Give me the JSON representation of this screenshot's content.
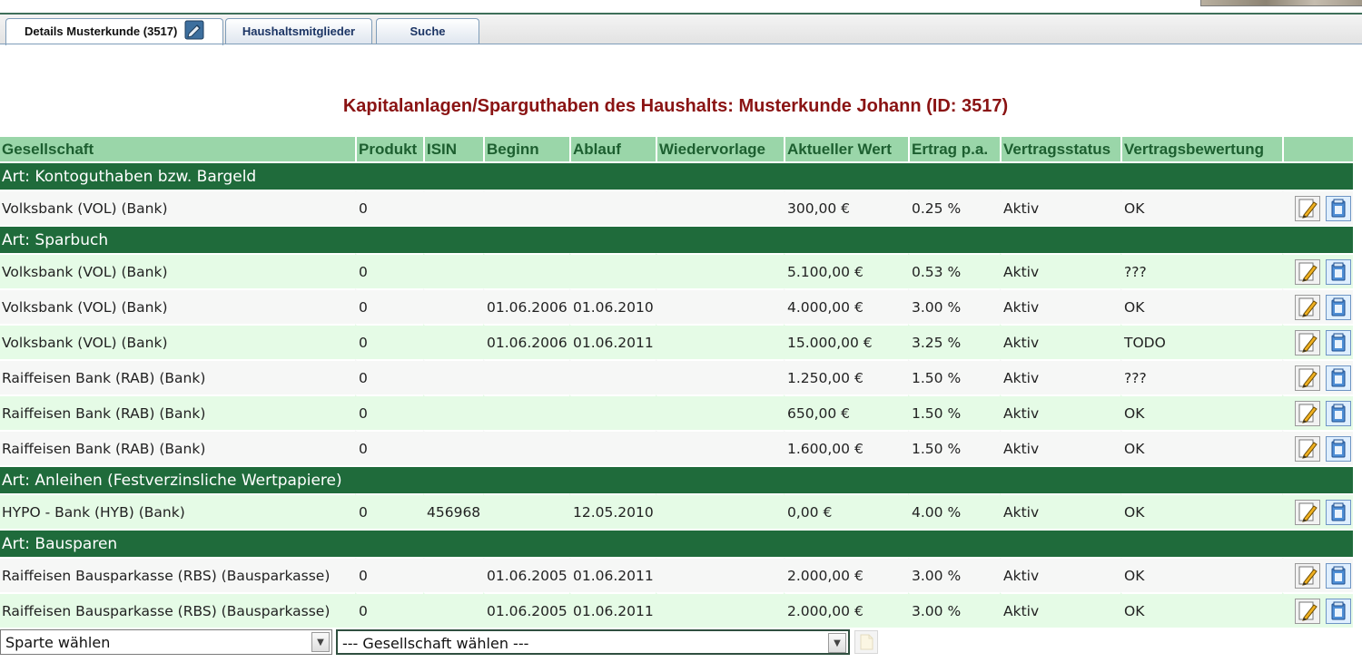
{
  "tabs": [
    {
      "label": "Details Musterkunde (3517)",
      "active": true
    },
    {
      "label": "Haushaltsmitglieder",
      "active": false
    },
    {
      "label": "Suche",
      "active": false
    }
  ],
  "title": "Kapitalanlagen/Sparguthaben des Haushalts: Musterkunde Johann (ID: 3517)",
  "columns": [
    "Gesellschaft",
    "Produkt",
    "ISIN",
    "Beginn",
    "Ablauf",
    "Wiedervorlage",
    "Aktueller Wert",
    "Ertrag p.a.",
    "Vertragsstatus",
    "Vertragsbewertung",
    ""
  ],
  "groups": [
    {
      "label": "Art: Kontoguthaben bzw. Bargeld",
      "rows": [
        {
          "gesellschaft": "Volksbank (VOL) (Bank)",
          "produkt": "0",
          "isin": "",
          "beginn": "",
          "ablauf": "",
          "wiedervorlage": "",
          "wert": "300,00 €",
          "ertrag": "0.25 %",
          "status": "Aktiv",
          "bewertung": "OK"
        }
      ]
    },
    {
      "label": "Art: Sparbuch",
      "rows": [
        {
          "gesellschaft": "Volksbank (VOL) (Bank)",
          "produkt": "0",
          "isin": "",
          "beginn": "",
          "ablauf": "",
          "wiedervorlage": "",
          "wert": "5.100,00 €",
          "ertrag": "0.53 %",
          "status": "Aktiv",
          "bewertung": "???"
        },
        {
          "gesellschaft": "Volksbank (VOL) (Bank)",
          "produkt": "0",
          "isin": "",
          "beginn": "01.06.2006",
          "ablauf": "01.06.2010",
          "wiedervorlage": "",
          "wert": "4.000,00 €",
          "ertrag": "3.00 %",
          "status": "Aktiv",
          "bewertung": "OK"
        },
        {
          "gesellschaft": "Volksbank (VOL) (Bank)",
          "produkt": "0",
          "isin": "",
          "beginn": "01.06.2006",
          "ablauf": "01.06.2011",
          "wiedervorlage": "",
          "wert": "15.000,00 €",
          "ertrag": "3.25 %",
          "status": "Aktiv",
          "bewertung": "TODO"
        },
        {
          "gesellschaft": "Raiffeisen Bank (RAB) (Bank)",
          "produkt": "0",
          "isin": "",
          "beginn": "",
          "ablauf": "",
          "wiedervorlage": "",
          "wert": "1.250,00 €",
          "ertrag": "1.50 %",
          "status": "Aktiv",
          "bewertung": "???"
        },
        {
          "gesellschaft": "Raiffeisen Bank (RAB) (Bank)",
          "produkt": "0",
          "isin": "",
          "beginn": "",
          "ablauf": "",
          "wiedervorlage": "",
          "wert": "650,00 €",
          "ertrag": "1.50 %",
          "status": "Aktiv",
          "bewertung": "OK"
        },
        {
          "gesellschaft": "Raiffeisen Bank (RAB) (Bank)",
          "produkt": "0",
          "isin": "",
          "beginn": "",
          "ablauf": "",
          "wiedervorlage": "",
          "wert": "1.600,00 €",
          "ertrag": "1.50 %",
          "status": "Aktiv",
          "bewertung": "OK"
        }
      ]
    },
    {
      "label": "Art: Anleihen (Festverzinsliche Wertpapiere)",
      "rows": [
        {
          "gesellschaft": "HYPO - Bank (HYB) (Bank)",
          "produkt": "0",
          "isin": "456968",
          "beginn": "",
          "ablauf": "12.05.2010",
          "wiedervorlage": "",
          "wert": "0,00 €",
          "ertrag": "4.00 %",
          "status": "Aktiv",
          "bewertung": "OK"
        }
      ]
    },
    {
      "label": "Art: Bausparen",
      "rows": [
        {
          "gesellschaft": "Raiffeisen Bausparkasse (RBS) (Bausparkasse)",
          "produkt": "0",
          "isin": "",
          "beginn": "01.06.2005",
          "ablauf": "01.06.2011",
          "wiedervorlage": "",
          "wert": "2.000,00 €",
          "ertrag": "3.00 %",
          "status": "Aktiv",
          "bewertung": "OK"
        },
        {
          "gesellschaft": "Raiffeisen Bausparkasse (RBS) (Bausparkasse)",
          "produkt": "0",
          "isin": "",
          "beginn": "01.06.2005",
          "ablauf": "01.06.2011",
          "wiedervorlage": "",
          "wert": "2.000,00 €",
          "ertrag": "3.00 %",
          "status": "Aktiv",
          "bewertung": "OK"
        }
      ]
    }
  ],
  "selects": {
    "sparte": "Sparte wählen",
    "gesellschaft": "--- Gesellschaft wählen ---"
  },
  "icons": {
    "edit": "edit-pencil-icon",
    "document": "document-icon",
    "tab_edit": "edit-record-icon",
    "add": "add-icon"
  },
  "colors": {
    "title": "#8a1313",
    "header_bg": "#9ad6a9",
    "header_text": "#1d5f30",
    "group_bg": "#1f6b3b",
    "row_light": "#f6f7f6",
    "row_green": "#e5fbe6"
  }
}
